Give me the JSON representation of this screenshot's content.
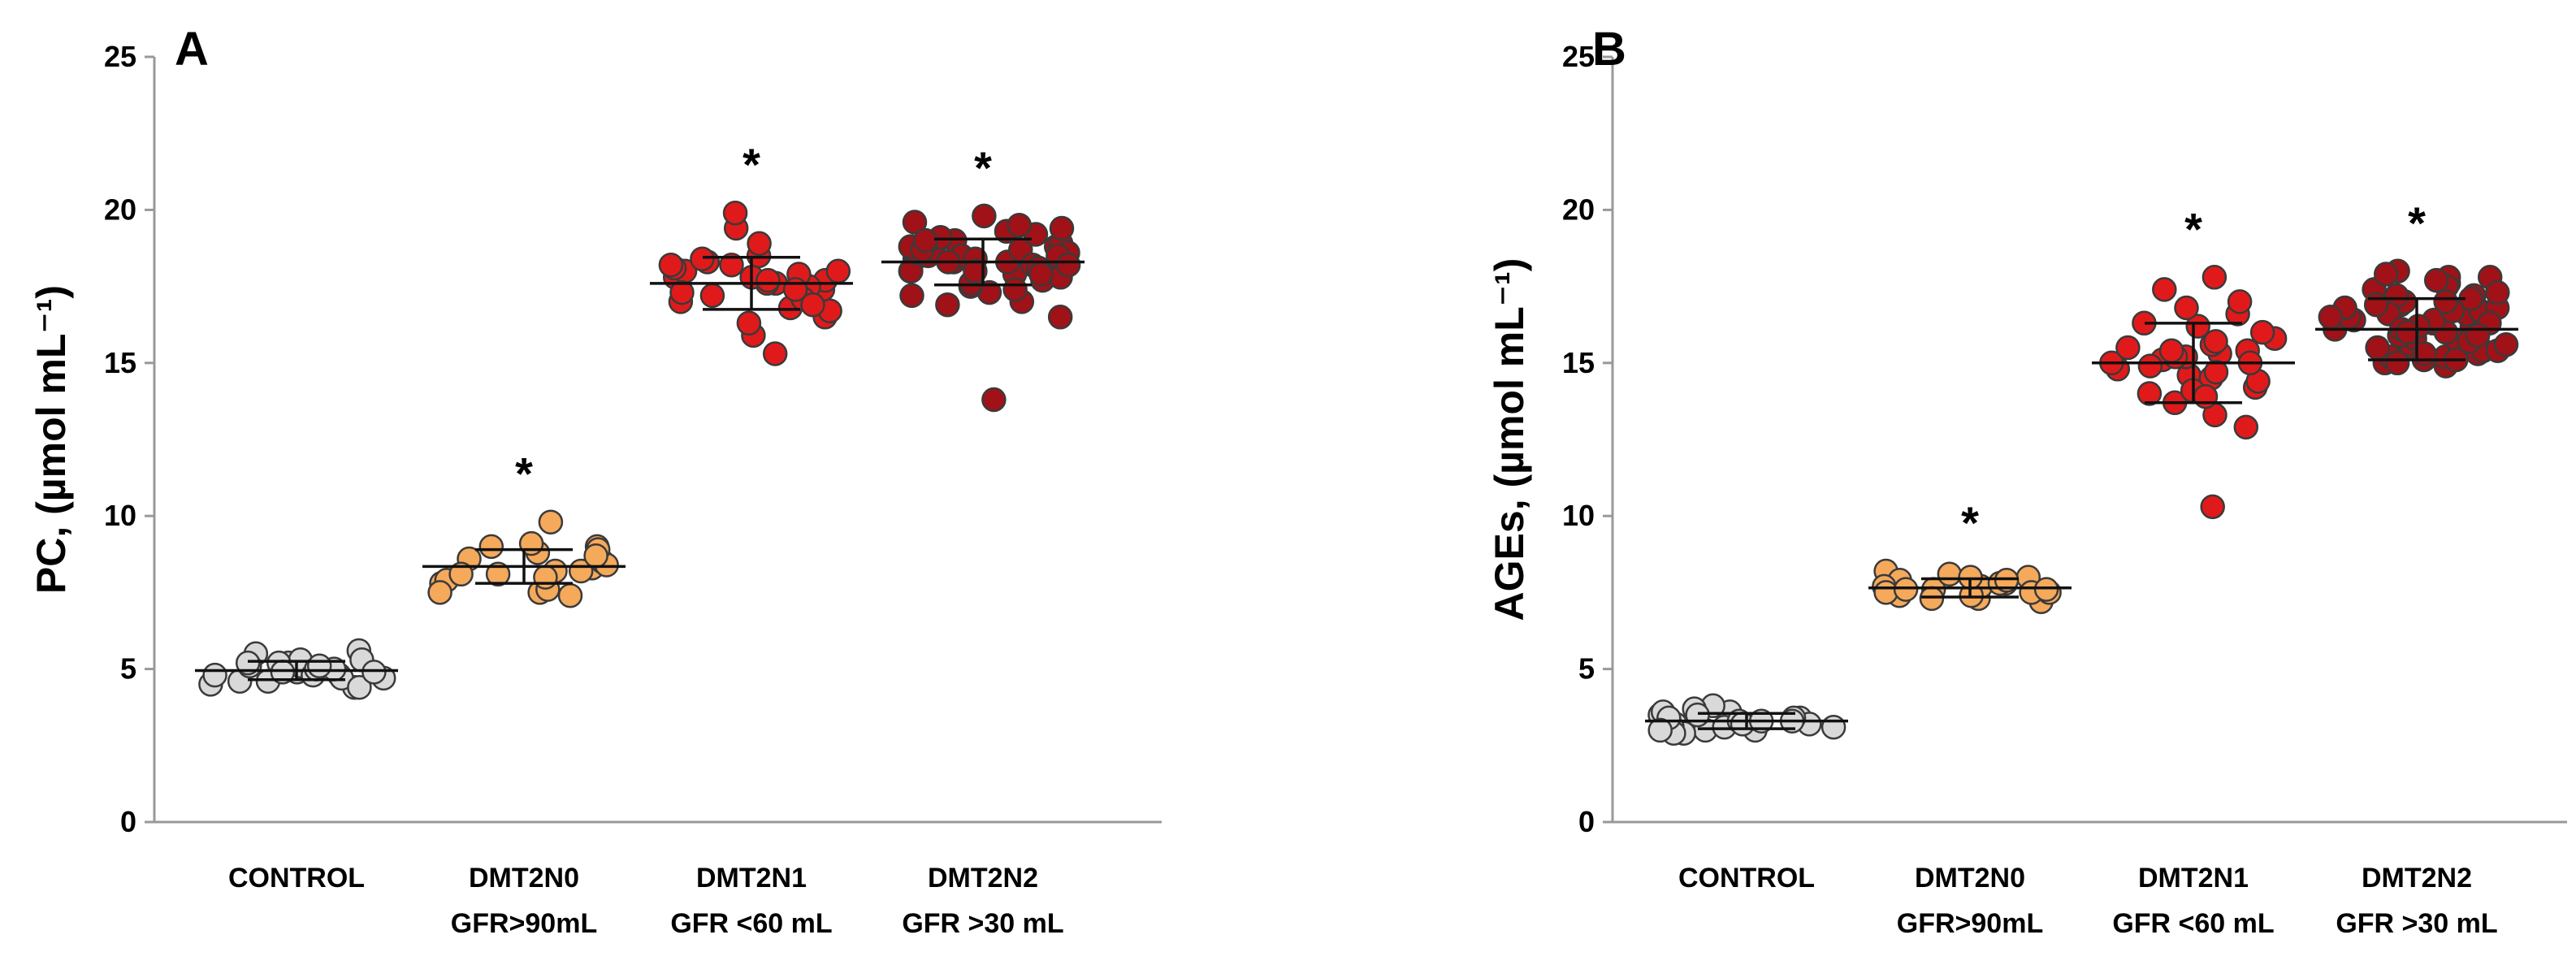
{
  "figure": {
    "panels": [
      "A",
      "B"
    ]
  },
  "chart_data": [
    {
      "type": "scatter",
      "subtype": "dot-plot with mean and SD bars",
      "panel_label": "A",
      "ylabel": "PC, (µmol mL⁻¹)",
      "ylim": [
        0,
        25
      ],
      "yticks": [
        "0",
        "5",
        "10",
        "15",
        "20",
        "25"
      ],
      "ytick_values": [
        0,
        5,
        10,
        15,
        20,
        25
      ],
      "categories": [
        {
          "line1": "CONTROL",
          "line2": ""
        },
        {
          "line1": "DMT2N0",
          "line2": "GFR>90mL"
        },
        {
          "line1": "DMT2N1",
          "line2": "GFR <60 mL"
        },
        {
          "line1": "DMT2N2",
          "line2": "GFR >30 mL"
        }
      ],
      "series": [
        {
          "name": "CONTROL",
          "color": "#d9d9d9",
          "mean": 4.95,
          "sd": 0.3,
          "significant": false,
          "values": [
            4.6,
            4.8,
            5.0,
            5.2,
            5.5,
            4.4,
            4.7,
            4.9,
            5.1,
            5.3,
            4.5,
            4.8,
            5.0,
            5.2,
            5.6,
            4.6,
            4.9,
            5.1,
            4.7,
            5.0,
            5.3,
            4.4,
            4.8,
            5.1,
            4.9,
            5.2
          ]
        },
        {
          "name": "DMT2N0",
          "color": "#f5a95b",
          "mean": 8.35,
          "sd": 0.55,
          "significant": true,
          "marker": "*",
          "values": [
            7.5,
            7.8,
            8.1,
            8.3,
            8.6,
            9.0,
            9.8,
            7.4,
            7.9,
            8.2,
            8.5,
            8.8,
            9.1,
            7.6,
            8.0,
            8.4,
            8.9,
            7.5,
            8.2,
            8.7,
            9.0,
            8.1
          ]
        },
        {
          "name": "DMT2N1",
          "color": "#e01a1a",
          "mean": 17.6,
          "sd": 0.85,
          "significant": true,
          "marker": "*",
          "values": [
            15.3,
            15.9,
            16.5,
            16.8,
            17.0,
            17.2,
            17.4,
            17.6,
            17.7,
            17.8,
            18.0,
            18.1,
            18.2,
            18.3,
            18.5,
            18.9,
            19.4,
            19.9,
            16.7,
            17.3,
            17.5,
            17.9,
            18.0,
            17.1,
            16.9,
            17.6,
            18.2,
            17.8,
            16.3,
            17.4,
            18.4,
            17.7
          ]
        },
        {
          "name": "DMT2N2",
          "color": "#a01217",
          "mean": 18.3,
          "sd": 0.75,
          "significant": true,
          "marker": "*",
          "values": [
            13.8,
            16.5,
            17.0,
            17.3,
            17.5,
            17.7,
            17.9,
            18.0,
            18.1,
            18.2,
            18.3,
            18.4,
            18.5,
            18.6,
            18.7,
            18.8,
            18.9,
            19.0,
            19.2,
            19.4,
            19.6,
            19.8,
            17.6,
            18.0,
            18.3,
            18.5,
            18.7,
            17.8,
            18.2,
            18.6,
            19.1,
            17.4,
            18.4,
            18.9,
            18.1,
            19.3,
            17.2,
            18.6,
            18.0,
            18.8,
            19.5,
            17.9,
            18.3,
            18.5,
            16.9,
            18.7,
            18.2,
            19.0
          ]
        }
      ]
    },
    {
      "type": "scatter",
      "subtype": "dot-plot with mean and SD bars",
      "panel_label": "B",
      "ylabel": "AGEs, (µmol mL⁻¹)",
      "ylim": [
        0,
        25
      ],
      "yticks": [
        "0",
        "5",
        "10",
        "15",
        "20",
        "25"
      ],
      "ytick_values": [
        0,
        5,
        10,
        15,
        20,
        25
      ],
      "categories": [
        {
          "line1": "CONTROL",
          "line2": ""
        },
        {
          "line1": "DMT2N0",
          "line2": "GFR>90mL"
        },
        {
          "line1": "DMT2N1",
          "line2": "GFR <60 mL"
        },
        {
          "line1": "DMT2N2",
          "line2": "GFR >30 mL"
        }
      ],
      "series": [
        {
          "name": "CONTROL",
          "color": "#d9d9d9",
          "mean": 3.3,
          "sd": 0.25,
          "significant": false,
          "values": [
            3.0,
            3.1,
            3.2,
            3.3,
            3.4,
            3.6,
            3.8,
            2.9,
            3.1,
            3.3,
            3.5,
            3.7,
            3.0,
            3.2,
            3.4,
            3.6,
            3.1,
            3.3,
            3.2,
            3.5,
            2.9,
            3.4,
            3.0,
            3.3
          ]
        },
        {
          "name": "DMT2N0",
          "color": "#f5a95b",
          "mean": 7.65,
          "sd": 0.3,
          "significant": true,
          "marker": "*",
          "values": [
            7.2,
            7.4,
            7.5,
            7.6,
            7.7,
            7.8,
            8.0,
            8.2,
            7.3,
            7.5,
            7.7,
            7.9,
            8.1,
            7.4,
            7.6,
            7.8,
            8.0,
            7.3,
            7.7,
            7.5,
            7.9,
            7.6
          ]
        },
        {
          "name": "DMT2N1",
          "color": "#e01a1a",
          "mean": 15.0,
          "sd": 1.3,
          "significant": true,
          "marker": "*",
          "values": [
            10.3,
            12.9,
            13.3,
            13.7,
            14.0,
            14.2,
            14.4,
            14.6,
            14.8,
            15.0,
            15.1,
            15.2,
            15.3,
            15.4,
            15.6,
            15.8,
            16.0,
            16.3,
            16.6,
            17.0,
            17.4,
            17.8,
            14.5,
            15.0,
            15.5,
            14.1,
            14.9,
            15.7,
            16.2,
            13.9,
            15.2,
            14.7,
            16.8,
            15.4
          ]
        },
        {
          "name": "DMT2N2",
          "color": "#a01217",
          "mean": 16.1,
          "sd": 1.0,
          "significant": true,
          "marker": "*",
          "values": [
            14.9,
            15.0,
            15.1,
            15.2,
            15.3,
            15.4,
            15.5,
            15.6,
            15.7,
            15.8,
            15.9,
            16.0,
            16.1,
            16.2,
            16.3,
            16.4,
            16.5,
            16.6,
            16.7,
            16.8,
            16.9,
            17.0,
            17.2,
            17.4,
            17.6,
            17.8,
            18.0,
            15.1,
            15.4,
            15.7,
            16.0,
            16.3,
            16.6,
            16.9,
            17.2,
            17.5,
            17.8,
            15.2,
            15.6,
            16.1,
            16.4,
            16.8,
            17.3,
            17.7,
            15.3,
            15.9,
            16.5,
            17.1,
            17.9,
            15.5,
            16.2,
            16.7,
            17.0,
            15.0,
            16.0
          ]
        }
      ]
    }
  ]
}
